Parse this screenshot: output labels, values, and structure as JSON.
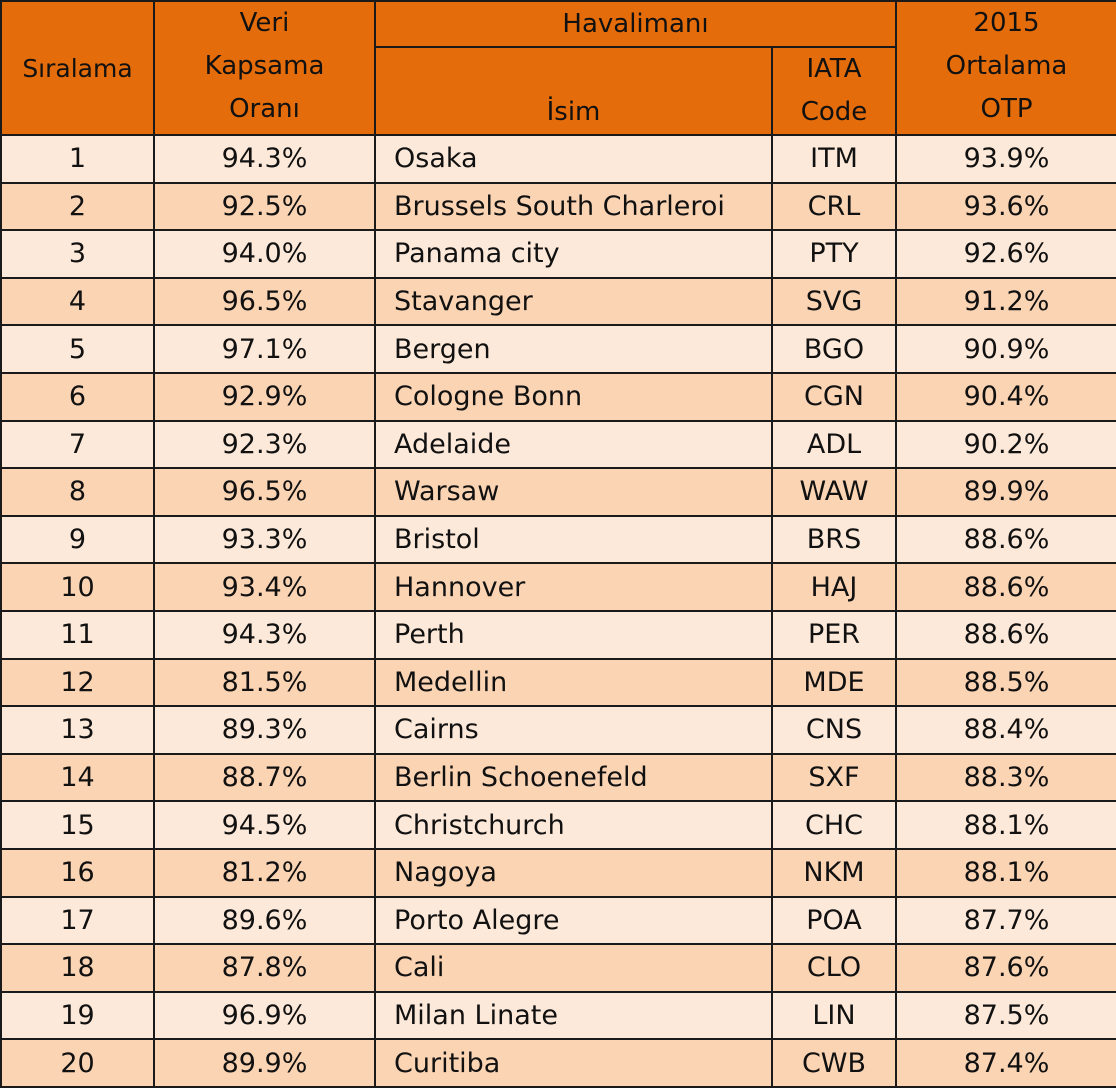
{
  "header": {
    "rank": "Sıralama",
    "coverage": [
      "Veri",
      "Kapsama",
      "Oranı"
    ],
    "airport": "Havalimanı",
    "name": "İsim",
    "iata": [
      "IATA",
      "Code"
    ],
    "otp": [
      "2015",
      "Ortalama",
      "OTP"
    ]
  },
  "colors": {
    "header_bg": "#E46C0A",
    "row_light": "#FDE9D9",
    "row_dark": "#FBD4B4",
    "border": "#1a1a1a"
  },
  "rows": [
    {
      "rank": "1",
      "coverage": "94.3%",
      "name": "Osaka",
      "iata": "ITM",
      "otp": "93.9%"
    },
    {
      "rank": "2",
      "coverage": "92.5%",
      "name": "Brussels South Charleroi",
      "iata": "CRL",
      "otp": "93.6%"
    },
    {
      "rank": "3",
      "coverage": "94.0%",
      "name": "Panama city",
      "iata": "PTY",
      "otp": "92.6%"
    },
    {
      "rank": "4",
      "coverage": "96.5%",
      "name": "Stavanger",
      "iata": "SVG",
      "otp": "91.2%"
    },
    {
      "rank": "5",
      "coverage": "97.1%",
      "name": "Bergen",
      "iata": "BGO",
      "otp": "90.9%"
    },
    {
      "rank": "6",
      "coverage": "92.9%",
      "name": "Cologne Bonn",
      "iata": "CGN",
      "otp": "90.4%"
    },
    {
      "rank": "7",
      "coverage": "92.3%",
      "name": "Adelaide",
      "iata": "ADL",
      "otp": "90.2%"
    },
    {
      "rank": "8",
      "coverage": "96.5%",
      "name": "Warsaw",
      "iata": "WAW",
      "otp": "89.9%"
    },
    {
      "rank": "9",
      "coverage": "93.3%",
      "name": "Bristol",
      "iata": "BRS",
      "otp": "88.6%"
    },
    {
      "rank": "10",
      "coverage": "93.4%",
      "name": "Hannover",
      "iata": "HAJ",
      "otp": "88.6%"
    },
    {
      "rank": "11",
      "coverage": "94.3%",
      "name": "Perth",
      "iata": "PER",
      "otp": "88.6%"
    },
    {
      "rank": "12",
      "coverage": "81.5%",
      "name": "Medellin",
      "iata": "MDE",
      "otp": "88.5%"
    },
    {
      "rank": "13",
      "coverage": "89.3%",
      "name": "Cairns",
      "iata": "CNS",
      "otp": "88.4%"
    },
    {
      "rank": "14",
      "coverage": "88.7%",
      "name": "Berlin Schoenefeld",
      "iata": "SXF",
      "otp": "88.3%"
    },
    {
      "rank": "15",
      "coverage": "94.5%",
      "name": "Christchurch",
      "iata": "CHC",
      "otp": "88.1%"
    },
    {
      "rank": "16",
      "coverage": "81.2%",
      "name": "Nagoya",
      "iata": "NKM",
      "otp": "88.1%"
    },
    {
      "rank": "17",
      "coverage": "89.6%",
      "name": "Porto Alegre",
      "iata": "POA",
      "otp": "87.7%"
    },
    {
      "rank": "18",
      "coverage": "87.8%",
      "name": "Cali",
      "iata": "CLO",
      "otp": "87.6%"
    },
    {
      "rank": "19",
      "coverage": "96.9%",
      "name": "Milan Linate",
      "iata": "LIN",
      "otp": "87.5%"
    },
    {
      "rank": "20",
      "coverage": "89.9%",
      "name": "Curitiba",
      "iata": "CWB",
      "otp": "87.4%"
    }
  ]
}
